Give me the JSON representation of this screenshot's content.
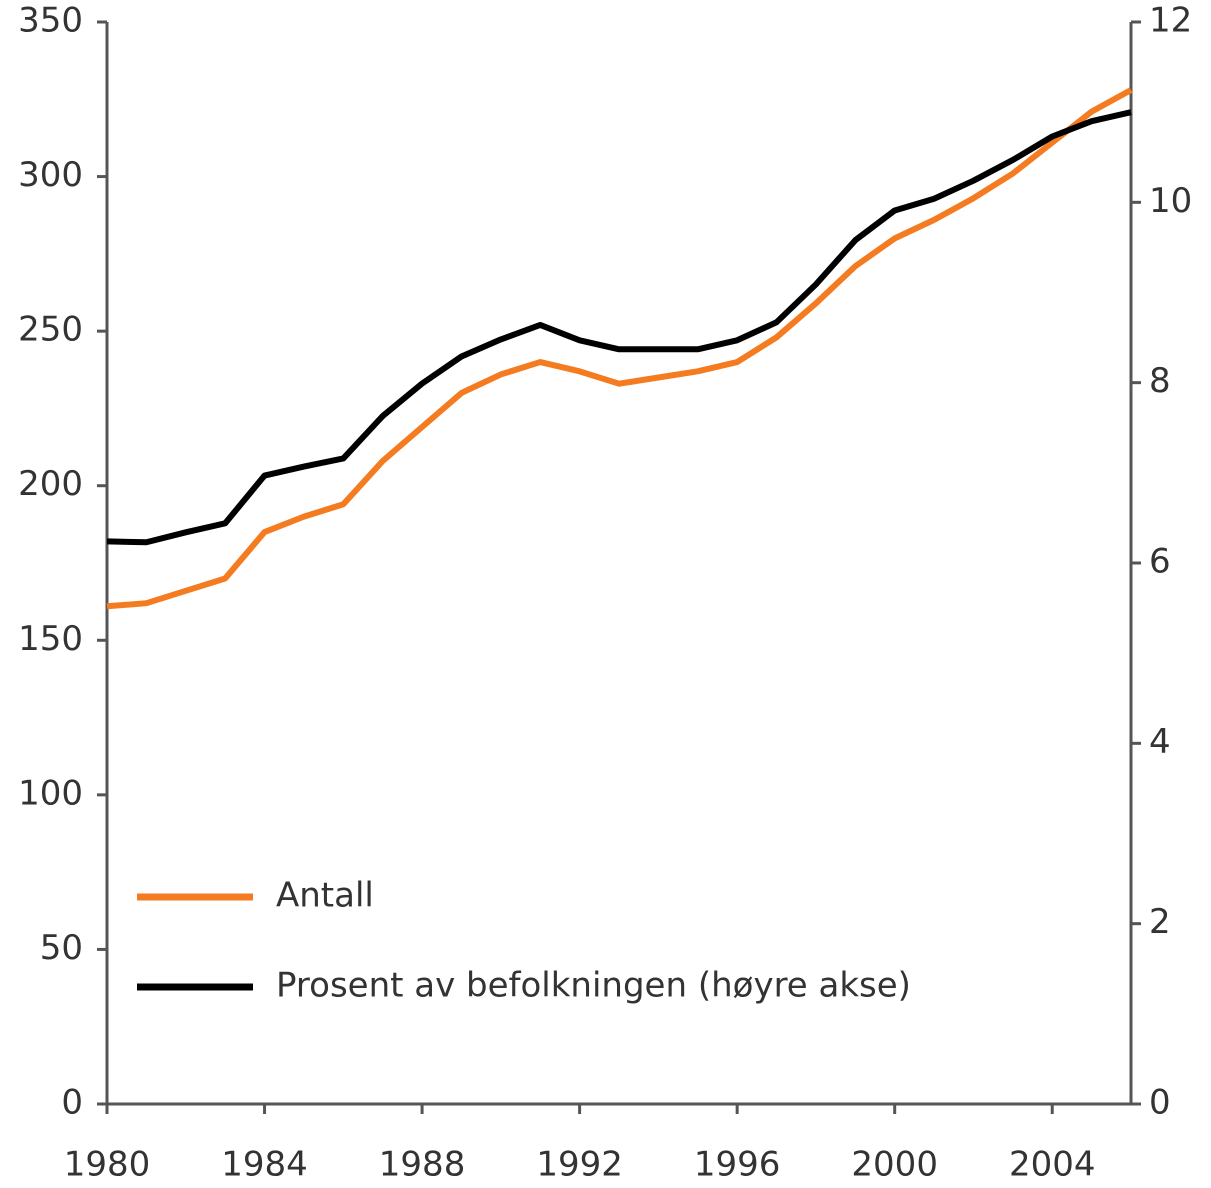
{
  "chart_data": {
    "type": "line",
    "x": [
      1980,
      1981,
      1982,
      1983,
      1984,
      1985,
      1986,
      1987,
      1988,
      1989,
      1990,
      1991,
      1992,
      1993,
      1994,
      1995,
      1996,
      1997,
      1998,
      1999,
      2000,
      2001,
      2002,
      2003,
      2004,
      2005,
      2006
    ],
    "series": [
      {
        "name": "Antall",
        "color": "#f47b20",
        "values": [
          161,
          162,
          166,
          170,
          185,
          190,
          194,
          208,
          219,
          230,
          236,
          240,
          237,
          233,
          235,
          237,
          240,
          248,
          259,
          271,
          280,
          286,
          293,
          301,
          311,
          321,
          328
        ]
      },
      {
        "name": "Prosent av befolkningen (høyre akse)",
        "color": "#000000",
        "axis": "y2",
        "values": [
          6.24,
          6.23,
          6.34,
          6.44,
          6.97,
          7.07,
          7.16,
          7.63,
          7.99,
          8.29,
          8.48,
          8.64,
          8.47,
          8.37,
          8.37,
          8.37,
          8.47,
          8.67,
          9.09,
          9.58,
          9.91,
          10.04,
          10.24,
          10.47,
          10.73,
          10.9,
          11.0
        ]
      }
    ],
    "xlim": [
      1980,
      2006
    ],
    "xticks": [
      1980,
      1984,
      1988,
      1992,
      1996,
      2000,
      2004
    ],
    "ylim": [
      0,
      350
    ],
    "yticks": [
      0,
      50,
      100,
      150,
      200,
      250,
      300,
      350
    ],
    "y2lim": [
      0,
      12
    ],
    "y2ticks": [
      0,
      2,
      4,
      6,
      8,
      10,
      12
    ],
    "legend": "lower left"
  }
}
